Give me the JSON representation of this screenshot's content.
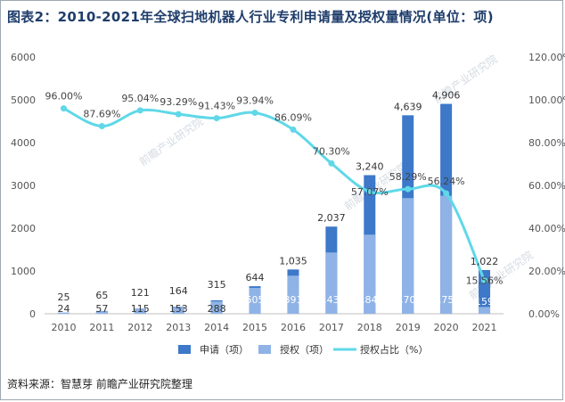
{
  "title": "图表2：2010-2021年全球扫地机器人行业专利申请量及授权量情况(单位：项)",
  "source": "资料来源：智慧芽 前瞻产业研究院整理",
  "watermark": "前瞻产业研究院",
  "colors": {
    "apply": "#3d78c9",
    "grant": "#8fb3e6",
    "rate": "#5fd8e8",
    "axis": "#555555",
    "title": "#1f3d6b"
  },
  "chart_data": {
    "type": "bar",
    "title": "图表2：2010-2021年全球扫地机器人行业专利申请量及授权量情况(单位：项)",
    "categories": [
      "2010",
      "2011",
      "2012",
      "2013",
      "2014",
      "2015",
      "2016",
      "2017",
      "2018",
      "2019",
      "2020",
      "2021"
    ],
    "ylim": [
      0,
      6000
    ],
    "yticks": [
      "0",
      "1000",
      "2000",
      "3000",
      "4000",
      "5000",
      "6000"
    ],
    "y2lim": [
      0,
      120
    ],
    "y2ticks": [
      "0.00%",
      "20.00%",
      "40.00%",
      "60.00%",
      "80.00%",
      "100.00%",
      "120.00%"
    ],
    "series": [
      {
        "name": "申请（项）",
        "kind": "bar",
        "values": [
          25,
          65,
          121,
          164,
          315,
          644,
          1035,
          2037,
          3240,
          4639,
          4906,
          1022
        ],
        "labels": [
          "25",
          "65",
          "121",
          "164",
          "315",
          "644",
          "1,035",
          "2,037",
          "3,240",
          "4,639",
          "4,906",
          "1,022"
        ]
      },
      {
        "name": "授权（项）",
        "kind": "bar",
        "values": [
          24,
          57,
          115,
          153,
          288,
          605,
          891,
          1432,
          1849,
          2704,
          2759,
          159
        ],
        "labels": [
          "24",
          "57",
          "115",
          "153",
          "288",
          "605",
          "891",
          "1,432",
          "1,849",
          "2,704",
          "2,759",
          "159"
        ]
      },
      {
        "name": "授权占比（%）",
        "kind": "line",
        "axis": "right",
        "values": [
          96.0,
          87.69,
          95.04,
          93.29,
          91.43,
          93.94,
          86.09,
          70.3,
          57.07,
          58.29,
          56.24,
          15.56
        ],
        "labels": [
          "96.00%",
          "87.69%",
          "95.04%",
          "93.29%",
          "91.43%",
          "93.94%",
          "86.09%",
          "70.30%",
          "57.07%",
          "58.29%",
          "56.24%",
          "15.56%"
        ]
      }
    ]
  }
}
